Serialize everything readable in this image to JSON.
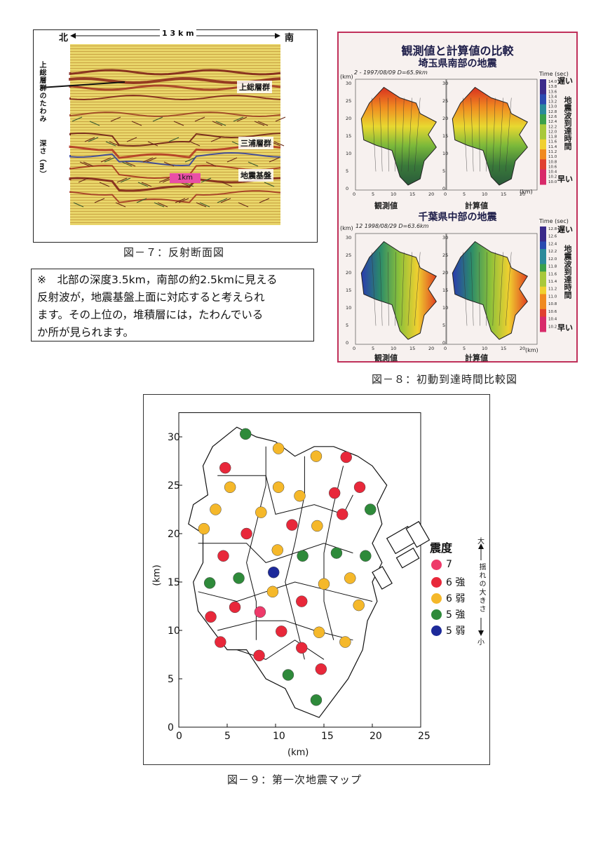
{
  "fig7": {
    "north": "北",
    "south": "南",
    "distance": "1 3 k m",
    "labels": {
      "kazusa": "上総層群",
      "miura": "三浦層群",
      "basement": "地震基盤",
      "km1": "1km"
    },
    "left_note": "上総層群のたわみ",
    "depth_label": "深さ（m）",
    "caption": "図－７：反射断面図"
  },
  "note": {
    "lines": [
      "※　北部の深度3.5km，南部の約2.5kmに見える",
      "反射波が，地震基盤上面に対応すると考えられ",
      "ます。その上位の，堆積層には，たわんでいる",
      "か所が見られます。"
    ]
  },
  "fig8": {
    "title": "観測値と計算値の比較",
    "eq1": {
      "title": "埼玉県南部の地震",
      "sub": "2 - 1997/08/09  D=65.9km",
      "left_label": "観測値",
      "right_label": "計算値",
      "scale_title": "Time (sec)",
      "scale_ticks": [
        "14.0",
        "13.8",
        "13.6",
        "13.4",
        "13.2",
        "13.0",
        "12.8",
        "12.6",
        "12.4",
        "12.2",
        "12.0",
        "11.8",
        "11.6",
        "11.4",
        "11.2",
        "11.0",
        "10.8",
        "10.6",
        "10.4",
        "10.2",
        "10.0"
      ]
    },
    "eq2": {
      "title": "千葉県中部の地震",
      "sub": "12  1998/08/29  D=63.6km",
      "left_label": "観測値",
      "right_label": "計算値",
      "scale_title": "Time (sec)",
      "scale_ticks": [
        "12.8",
        "12.6",
        "12.4",
        "12.2",
        "12.0",
        "11.8",
        "11.6",
        "11.4",
        "11.2",
        "11.0",
        "10.8",
        "10.6",
        "10.4",
        "10.2"
      ]
    },
    "slow": "遅い",
    "fast": "早い",
    "arrival": "地震波到達時間",
    "km": "(km)",
    "axis_y": [
      "30",
      "25",
      "20",
      "15",
      "10",
      "5",
      "0"
    ],
    "axis_x": [
      "0",
      "5",
      "10",
      "15",
      "20"
    ],
    "caption": "図－８：初動到達時間比較図"
  },
  "fig9": {
    "xlabel": "(km)",
    "ylabel": "(km)",
    "x_ticks": [
      "0",
      "5",
      "10",
      "15",
      "20",
      "25"
    ],
    "y_ticks": [
      "0",
      "5",
      "10",
      "15",
      "20",
      "25",
      "30"
    ],
    "legend_title": "震度",
    "legend": [
      {
        "label": "7",
        "color": "#ee3a6a"
      },
      {
        "label": "6 強",
        "color": "#e8283a"
      },
      {
        "label": "6 弱",
        "color": "#f5b82a"
      },
      {
        "label": "5 強",
        "color": "#2e8a3a"
      },
      {
        "label": "5 弱",
        "color": "#1d2a9a"
      }
    ],
    "side_big": "大",
    "side_text": "揺れの大きさ",
    "side_small": "小",
    "points": [
      {
        "x": 6.9,
        "y": 30.3,
        "c": "5 強"
      },
      {
        "x": 10.3,
        "y": 28.8,
        "c": "6 弱"
      },
      {
        "x": 14.2,
        "y": 28.0,
        "c": "6 弱"
      },
      {
        "x": 17.3,
        "y": 27.9,
        "c": "6 強"
      },
      {
        "x": 4.8,
        "y": 26.8,
        "c": "6 強"
      },
      {
        "x": 5.3,
        "y": 24.8,
        "c": "6 弱"
      },
      {
        "x": 10.3,
        "y": 24.8,
        "c": "6 弱"
      },
      {
        "x": 12.5,
        "y": 23.9,
        "c": "6 弱"
      },
      {
        "x": 16.1,
        "y": 24.2,
        "c": "6 強"
      },
      {
        "x": 18.7,
        "y": 24.8,
        "c": "6 強"
      },
      {
        "x": 19.8,
        "y": 22.5,
        "c": "5 強"
      },
      {
        "x": 3.8,
        "y": 22.5,
        "c": "6 弱"
      },
      {
        "x": 8.5,
        "y": 22.2,
        "c": "6 弱"
      },
      {
        "x": 16.9,
        "y": 22.0,
        "c": "6 強"
      },
      {
        "x": 2.6,
        "y": 20.5,
        "c": "6 弱"
      },
      {
        "x": 11.7,
        "y": 20.9,
        "c": "6 強"
      },
      {
        "x": 14.3,
        "y": 20.8,
        "c": "6 弱"
      },
      {
        "x": 7.0,
        "y": 20.0,
        "c": "6 強"
      },
      {
        "x": 10.2,
        "y": 18.3,
        "c": "6 弱"
      },
      {
        "x": 12.8,
        "y": 17.7,
        "c": "5 強"
      },
      {
        "x": 16.3,
        "y": 18.0,
        "c": "5 強"
      },
      {
        "x": 19.3,
        "y": 17.7,
        "c": "5 強"
      },
      {
        "x": 4.6,
        "y": 17.7,
        "c": "6 強"
      },
      {
        "x": 9.8,
        "y": 16.0,
        "c": "5 弱"
      },
      {
        "x": 3.2,
        "y": 14.9,
        "c": "5 強"
      },
      {
        "x": 6.2,
        "y": 15.4,
        "c": "5 強"
      },
      {
        "x": 15.0,
        "y": 14.8,
        "c": "6 弱"
      },
      {
        "x": 17.7,
        "y": 15.4,
        "c": "6 弱"
      },
      {
        "x": 9.7,
        "y": 14.0,
        "c": "6 弱"
      },
      {
        "x": 12.7,
        "y": 13.0,
        "c": "6 強"
      },
      {
        "x": 5.8,
        "y": 12.4,
        "c": "6 強"
      },
      {
        "x": 8.4,
        "y": 11.9,
        "c": "7"
      },
      {
        "x": 18.6,
        "y": 12.6,
        "c": "6 弱"
      },
      {
        "x": 3.3,
        "y": 11.4,
        "c": "6 強"
      },
      {
        "x": 10.6,
        "y": 9.9,
        "c": "6 強"
      },
      {
        "x": 14.5,
        "y": 9.8,
        "c": "6 弱"
      },
      {
        "x": 4.3,
        "y": 8.8,
        "c": "6 強"
      },
      {
        "x": 12.7,
        "y": 8.2,
        "c": "6 強"
      },
      {
        "x": 17.2,
        "y": 8.8,
        "c": "6 弱"
      },
      {
        "x": 8.3,
        "y": 7.4,
        "c": "6 強"
      },
      {
        "x": 14.7,
        "y": 6.0,
        "c": "6 強"
      },
      {
        "x": 11.3,
        "y": 5.4,
        "c": "5 強"
      },
      {
        "x": 14.2,
        "y": 2.8,
        "c": "5 強"
      }
    ],
    "caption": "図－９：第一次地震マップ"
  }
}
